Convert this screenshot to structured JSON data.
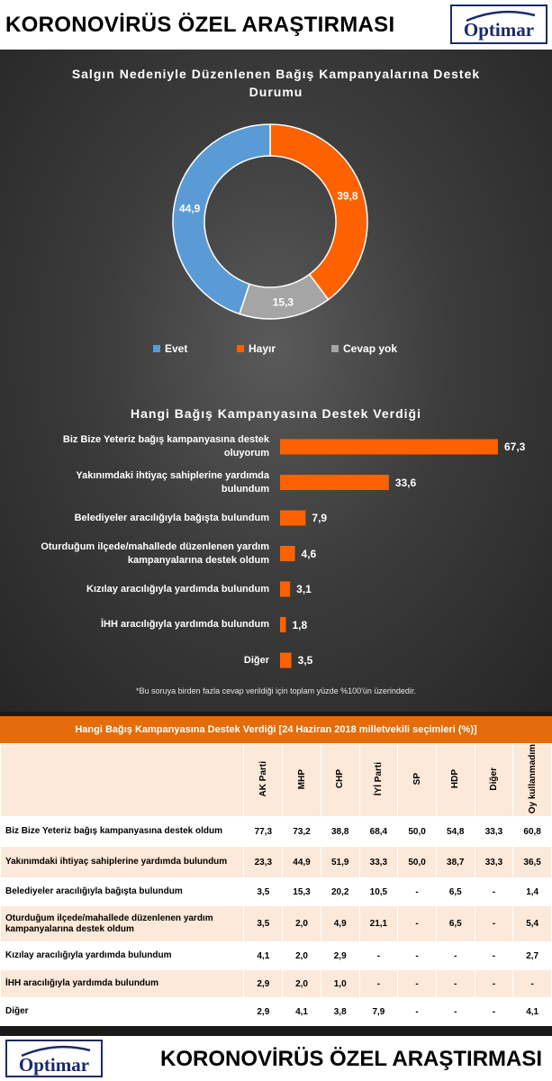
{
  "header": {
    "title": "KORONOVİRÜS ÖZEL ARAŞTIRMASI",
    "logo": "Optimar"
  },
  "footer": {
    "title": "KORONOVİRÜS ÖZEL ARAŞTIRMASI",
    "logo": "Optimar"
  },
  "chart_data": [
    {
      "type": "pie",
      "donut": true,
      "title": "Salgın Nedeniyle Düzenlenen Bağış Kampanyalarına Destek Durumu",
      "title_lines": [
        "Salgın Nedeniyle Düzenlenen Bağış Kampanyalarına Destek",
        "Durumu"
      ],
      "slices": [
        {
          "label": "Hayır",
          "value": 39.8,
          "display": "39,8",
          "color": "#fe6100"
        },
        {
          "label": "Cevap yok",
          "value": 15.3,
          "display": "15,3",
          "color": "#a5a5a5"
        },
        {
          "label": "Evet",
          "value": 44.9,
          "display": "44,9",
          "color": "#5b9bd5"
        }
      ],
      "legend": [
        "Evet",
        "Hayır",
        "Cevap yok"
      ],
      "legend_placement": "bottom"
    },
    {
      "type": "bar",
      "orientation": "horizontal",
      "title": "Hangi Bağış Kampanyasına Destek Verdiği",
      "categories": [
        "Biz Bize Yeteriz bağış kampanyasına destek oluyorum",
        "Yakınımdaki ihtiyaç sahiplerine yardımda bulundum",
        "Belediyeler aracılığıyla bağışta bulundum",
        "Oturduğum ilçede/mahallede düzenlenen yardım kampanyalarına destek oldum",
        "Kızılay aracılığıyla yardımda bulundum",
        "İHH aracılığıyla yardımda bulundum",
        "Diğer"
      ],
      "category_lines": [
        [
          "Biz Bize Yeteriz bağış kampanyasına destek",
          "oluyorum"
        ],
        [
          "Yakınımdaki ihtiyaç sahiplerine yardımda",
          "bulundum"
        ],
        [
          "Belediyeler aracılığıyla bağışta bulundum"
        ],
        [
          "Oturduğum ilçede/mahallede düzenlenen yardım",
          "kampanyalarına destek oldum"
        ],
        [
          "Kızılay aracılığıyla yardımda bulundum"
        ],
        [
          "İHH aracılığıyla yardımda bulundum"
        ],
        [
          "Diğer"
        ]
      ],
      "values": [
        67.3,
        33.6,
        7.9,
        4.6,
        3.1,
        1.8,
        3.5
      ],
      "display_values": [
        "67,3",
        "33,6",
        "7,9",
        "4,6",
        "3,1",
        "1,8",
        "3,5"
      ],
      "xlim": [
        0,
        67.3
      ],
      "bar_color": "#fe6100",
      "footnote": "*Bu soruya birden fazla cevap verildiği için toplam yüzde %100'ün üzerindedir."
    },
    {
      "type": "table",
      "title": "Hangi Bağış Kampanyasına Destek Verdiği [24 Haziran 2018 milletvekili seçimleri (%)]",
      "columns": [
        "AK Parti",
        "MHP",
        "CHP",
        "İYİ Parti",
        "SP",
        "HDP",
        "Diğer",
        "Oy kullanmadım"
      ],
      "rows": [
        {
          "label": "Biz Bize Yeteriz bağış kampanyasına destek oldum",
          "values": [
            "77,3",
            "73,2",
            "38,8",
            "68,4",
            "50,0",
            "54,8",
            "33,3",
            "60,8"
          ]
        },
        {
          "label": "Yakınımdaki ihtiyaç sahiplerine yardımda bulundum",
          "values": [
            "23,3",
            "44,9",
            "51,9",
            "33,3",
            "50,0",
            "38,7",
            "33,3",
            "36,5"
          ]
        },
        {
          "label": "Belediyeler aracılığıyla bağışta bulundum",
          "values": [
            "3,5",
            "15,3",
            "20,2",
            "10,5",
            "-",
            "6,5",
            "-",
            "1,4"
          ]
        },
        {
          "label": "Oturduğum ilçede/mahallede düzenlenen yardım kampanyalarına destek oldum",
          "values": [
            "3,5",
            "2,0",
            "4,9",
            "21,1",
            "-",
            "6,5",
            "-",
            "5,4"
          ]
        },
        {
          "label": "Kızılay aracılığıyla yardımda bulundum",
          "values": [
            "4,1",
            "2,0",
            "2,9",
            "-",
            "-",
            "-",
            "-",
            "2,7"
          ]
        },
        {
          "label": "İHH aracılığıyla yardımda bulundum",
          "values": [
            "2,9",
            "2,0",
            "1,0",
            "-",
            "-",
            "-",
            "-",
            "-"
          ]
        },
        {
          "label": "Diğer",
          "values": [
            "2,9",
            "4,1",
            "3,8",
            "7,9",
            "-",
            "-",
            "-",
            "4,1"
          ]
        }
      ]
    }
  ]
}
